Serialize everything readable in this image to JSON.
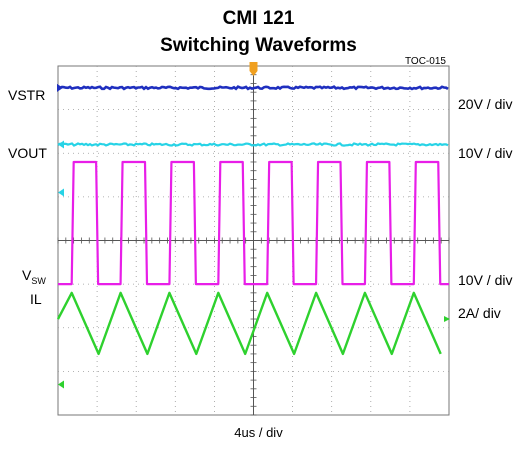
{
  "title": "CMI  121",
  "subtitle": "Switching Waveforms",
  "figure_id": "TOC-015",
  "x_scale": "4us / div",
  "colors": {
    "vstr": "#1f2fbf",
    "vout": "#27d3e6",
    "vsw": "#e81ee8",
    "il": "#2ed12e",
    "trigger": "#f0a020",
    "grid": "#9a9a9a",
    "border": "#777777"
  },
  "chart_data": {
    "type": "line",
    "title": "CMI  121",
    "subtitle": "Switching Waveforms",
    "xlabel": "4us / div",
    "grid": true,
    "x_divisions": 10,
    "y_divisions": 8,
    "series": [
      {
        "name": "VSTR",
        "name_sub": "",
        "scale": "20V / div",
        "shape": "dc",
        "level_div": 7.5
      },
      {
        "name": "VOUT",
        "name_sub": "",
        "scale": "10V / div",
        "shape": "dc",
        "level_div": 6.2
      },
      {
        "name": "V",
        "name_sub": "SW",
        "scale": "10V / div",
        "shape": "square",
        "low_div": 3.0,
        "high_div": 5.8,
        "period_div": 1.25,
        "duty": 0.5
      },
      {
        "name": "IL",
        "name_sub": "",
        "scale": "2A/ div",
        "shape": "triangle",
        "low_div": 1.4,
        "high_div": 2.8,
        "period_div": 1.25
      }
    ]
  }
}
